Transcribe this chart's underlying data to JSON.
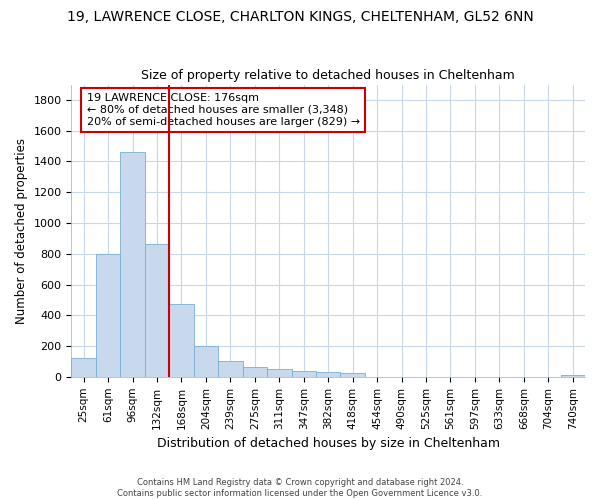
{
  "title1": "19, LAWRENCE CLOSE, CHARLTON KINGS, CHELTENHAM, GL52 6NN",
  "title2": "Size of property relative to detached houses in Cheltenham",
  "xlabel": "Distribution of detached houses by size in Cheltenham",
  "ylabel": "Number of detached properties",
  "footer1": "Contains HM Land Registry data © Crown copyright and database right 2024.",
  "footer2": "Contains public sector information licensed under the Open Government Licence v3.0.",
  "annotation_title": "19 LAWRENCE CLOSE: 176sqm",
  "annotation_line1": "← 80% of detached houses are smaller (3,348)",
  "annotation_line2": "20% of semi-detached houses are larger (829) →",
  "bar_color": "#c9d9ed",
  "bar_edge_color": "#7aadd4",
  "vline_color": "#cc0000",
  "categories": [
    "25sqm",
    "61sqm",
    "96sqm",
    "132sqm",
    "168sqm",
    "204sqm",
    "239sqm",
    "275sqm",
    "311sqm",
    "347sqm",
    "382sqm",
    "418sqm",
    "454sqm",
    "490sqm",
    "525sqm",
    "561sqm",
    "597sqm",
    "633sqm",
    "668sqm",
    "704sqm",
    "740sqm"
  ],
  "values": [
    120,
    800,
    1460,
    862,
    475,
    200,
    100,
    65,
    50,
    40,
    30,
    25,
    0,
    0,
    0,
    0,
    0,
    0,
    0,
    0,
    15
  ],
  "vline_x_index": 4,
  "ylim": [
    0,
    1900
  ],
  "yticks": [
    0,
    200,
    400,
    600,
    800,
    1000,
    1200,
    1400,
    1600,
    1800
  ],
  "background_color": "#ffffff",
  "grid_color": "#c8d8e8",
  "title1_fontsize": 10,
  "title2_fontsize": 9
}
